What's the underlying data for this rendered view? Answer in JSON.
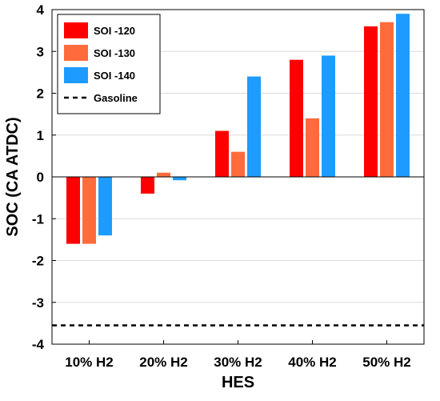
{
  "chart_data": {
    "type": "bar",
    "title": "",
    "xlabel": "HES",
    "ylabel": "SOC (CA ATDC)",
    "categories": [
      "10% H2",
      "20% H2",
      "30% H2",
      "40% H2",
      "50% H2"
    ],
    "series": [
      {
        "name": "SOI -120",
        "color": "#ff0000",
        "values": [
          -1.6,
          -0.4,
          1.1,
          2.8,
          3.6
        ]
      },
      {
        "name": "SOI -130",
        "color": "#ff6b3b",
        "values": [
          -1.6,
          0.1,
          0.6,
          1.4,
          3.7
        ]
      },
      {
        "name": "SOI -140",
        "color": "#1e9bff",
        "values": [
          -1.4,
          -0.08,
          2.4,
          2.9,
          3.9
        ]
      }
    ],
    "reference_lines": [
      {
        "name": "Gasoline",
        "y": -3.55,
        "style": "dashed",
        "color": "#000000"
      }
    ],
    "ylim": [
      -4,
      4
    ],
    "yticks": [
      "-4",
      "-3",
      "-2",
      "-1",
      "0",
      "1",
      "2",
      "3",
      "4"
    ],
    "grid": "horizontal",
    "legend_position": "top-left"
  }
}
